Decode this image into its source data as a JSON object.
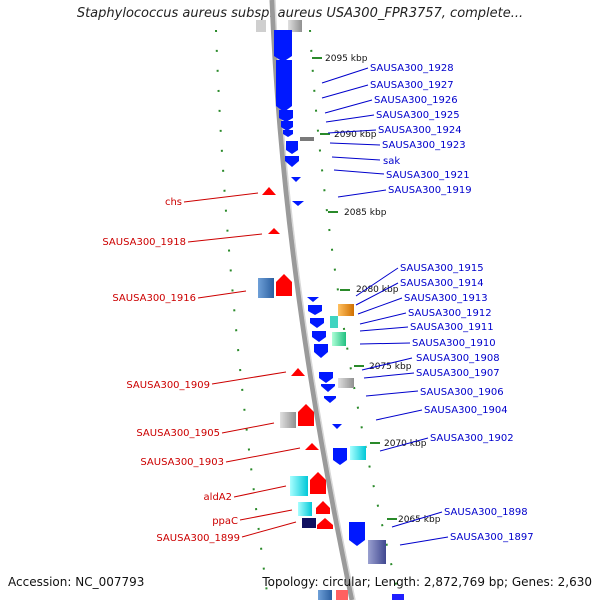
{
  "title": "Staphylococcus aureus subsp. aureus USA300_FPR3757, complete...",
  "footer": {
    "accession": "Accession: NC_007793",
    "summary": "Topology: circular; Length: 2,872,769 bp; Genes: 2,630"
  },
  "scale_labels": [
    "2095 kbp",
    "2090 kbp",
    "2085 kbp",
    "2080 kbp",
    "2075 kbp",
    "2070 kbp",
    "2065 kbp"
  ],
  "genes_right": [
    "SAUSA300_1928",
    "SAUSA300_1927",
    "SAUSA300_1926",
    "SAUSA300_1925",
    "SAUSA300_1924",
    "SAUSA300_1923",
    "sak",
    "SAUSA300_1921",
    "SAUSA300_1919",
    "SAUSA300_1915",
    "SAUSA300_1914",
    "SAUSA300_1913",
    "SAUSA300_1912",
    "SAUSA300_1911",
    "SAUSA300_1910",
    "SAUSA300_1908",
    "SAUSA300_1907",
    "SAUSA300_1906",
    "SAUSA300_1904",
    "SAUSA300_1902",
    "SAUSA300_1898",
    "SAUSA300_1897"
  ],
  "genes_left": [
    "chs",
    "SAUSA300_1918",
    "SAUSA300_1916",
    "SAUSA300_1909",
    "SAUSA300_1905",
    "SAUSA300_1903",
    "aldA2",
    "ppaC",
    "SAUSA300_1899"
  ],
  "colors": {
    "reverse_strand": "#0000ff",
    "forward_strand": "#ff0000",
    "backbone": "#999999",
    "tick_dots": "#2a8a2a",
    "label_right": "#0000cc",
    "label_left": "#cc0000"
  }
}
